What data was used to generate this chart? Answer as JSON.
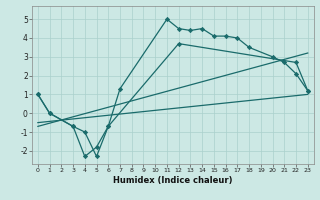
{
  "xlabel": "Humidex (Indice chaleur)",
  "bg_color": "#cce8e4",
  "grid_color": "#aad0cc",
  "line_color": "#1a6b6b",
  "xlim": [
    -0.5,
    23.5
  ],
  "ylim": [
    -2.7,
    5.7
  ],
  "xticks": [
    0,
    1,
    2,
    3,
    4,
    5,
    6,
    7,
    8,
    9,
    10,
    11,
    12,
    13,
    14,
    15,
    16,
    17,
    18,
    19,
    20,
    21,
    22,
    23
  ],
  "yticks": [
    -2,
    -1,
    0,
    1,
    2,
    3,
    4,
    5
  ],
  "series": [
    {
      "x": [
        0,
        1,
        3,
        4,
        5,
        6,
        7,
        11,
        12,
        13,
        14,
        15,
        16,
        17,
        18,
        20,
        21,
        22,
        23
      ],
      "y": [
        1.0,
        0.0,
        -0.7,
        -2.3,
        -1.8,
        -0.7,
        1.3,
        5.0,
        4.5,
        4.4,
        4.5,
        4.1,
        4.1,
        4.0,
        3.5,
        3.0,
        2.7,
        2.1,
        1.2
      ],
      "marker": true
    },
    {
      "x": [
        0,
        1,
        3,
        4,
        5,
        6,
        12,
        22,
        23
      ],
      "y": [
        1.0,
        0.0,
        -0.7,
        -1.0,
        -2.3,
        -0.7,
        3.7,
        2.7,
        1.2
      ],
      "marker": true
    },
    {
      "x": [
        0,
        23
      ],
      "y": [
        -0.5,
        1.0
      ],
      "marker": false
    },
    {
      "x": [
        0,
        23
      ],
      "y": [
        -0.7,
        3.2
      ],
      "marker": false
    }
  ]
}
